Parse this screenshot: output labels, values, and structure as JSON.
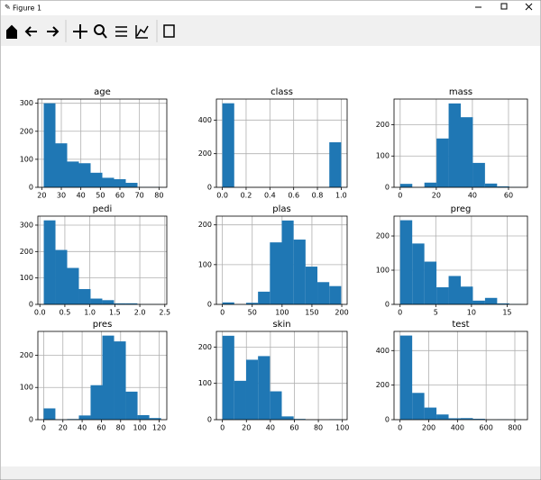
{
  "window": {
    "title": "Figure 1"
  },
  "chart_data": [
    {
      "type": "histogram",
      "title": "age",
      "bins": [
        21,
        27,
        33,
        39,
        45,
        51,
        57,
        63,
        69,
        75,
        81
      ],
      "values": [
        300,
        157,
        92,
        86,
        52,
        34,
        29,
        16,
        1,
        1
      ],
      "color": "#1f77b4",
      "xlim": [
        18,
        84
      ],
      "xticks": [
        20,
        30,
        40,
        50,
        60,
        70,
        80
      ],
      "ylim": [
        0,
        315
      ],
      "yticks": [
        0,
        100,
        200,
        300
      ],
      "grid": true
    },
    {
      "type": "histogram",
      "title": "class",
      "bins": [
        0,
        0.1,
        0.2,
        0.3,
        0.4,
        0.5,
        0.6,
        0.7,
        0.8,
        0.9,
        1
      ],
      "values": [
        500,
        0,
        0,
        0,
        0,
        0,
        0,
        0,
        0,
        268
      ],
      "color": "#1f77b4",
      "xlim": [
        -0.05,
        1.05
      ],
      "xticks": [
        {
          "value": 0,
          "label": "0.0"
        },
        0.2,
        0.4,
        0.6,
        0.8,
        {
          "value": 1,
          "label": "1.0"
        }
      ],
      "ylim": [
        0,
        525
      ],
      "yticks": [
        0,
        200,
        400
      ],
      "grid": true
    },
    {
      "type": "histogram",
      "title": "mass",
      "bins": [
        0,
        6.71,
        13.42,
        20.13,
        26.84,
        33.55,
        40.26,
        46.97,
        53.68,
        60.39,
        67.1
      ],
      "values": [
        11,
        0,
        15,
        156,
        268,
        224,
        78,
        12,
        3,
        1
      ],
      "color": "#1f77b4",
      "xlim": [
        -3.4,
        70.5
      ],
      "xticks": [
        0,
        20,
        40,
        60
      ],
      "ylim": [
        0,
        282
      ],
      "yticks": [
        0,
        100,
        200
      ],
      "grid": true
    },
    {
      "type": "histogram",
      "title": "pedi",
      "bins": [
        0.078,
        0.3122,
        0.5464,
        0.7806,
        1.0148,
        1.249,
        1.4832,
        1.7174,
        1.9516,
        2.1858,
        2.42
      ],
      "values": [
        318,
        206,
        138,
        58,
        22,
        16,
        4,
        4,
        1,
        1
      ],
      "color": "#1f77b4",
      "xlim": [
        -0.04,
        2.54
      ],
      "xticks": [
        {
          "value": 0,
          "label": "0.0"
        },
        0.5,
        {
          "value": 1,
          "label": "1.0"
        },
        1.5,
        {
          "value": 2,
          "label": "2.0"
        },
        2.5
      ],
      "ylim": [
        0,
        334
      ],
      "yticks": [
        0,
        100,
        200,
        300
      ],
      "grid": true
    },
    {
      "type": "histogram",
      "title": "plas",
      "bins": [
        0,
        19.9,
        39.8,
        59.7,
        79.6,
        99.5,
        119.4,
        139.3,
        159.2,
        179.1,
        199
      ],
      "values": [
        5,
        0,
        4,
        32,
        156,
        211,
        163,
        95,
        56,
        46
      ],
      "color": "#1f77b4",
      "xlim": [
        -10,
        209
      ],
      "xticks": [
        0,
        50,
        100,
        150,
        200
      ],
      "ylim": [
        0,
        222
      ],
      "yticks": [
        0,
        100,
        200
      ],
      "grid": true
    },
    {
      "type": "histogram",
      "title": "preg",
      "bins": [
        0,
        1.7,
        3.4,
        5.1,
        6.8,
        8.5,
        10.2,
        11.9,
        13.6,
        15.3,
        17
      ],
      "values": [
        246,
        178,
        125,
        50,
        83,
        52,
        11,
        19,
        3,
        1
      ],
      "color": "#1f77b4",
      "xlim": [
        -0.85,
        17.85
      ],
      "xticks": [
        0,
        5,
        10,
        15
      ],
      "ylim": [
        0,
        258
      ],
      "yticks": [
        0,
        100,
        200
      ],
      "grid": true
    },
    {
      "type": "histogram",
      "title": "pres",
      "bins": [
        0,
        12.2,
        24.4,
        36.6,
        48.8,
        61,
        73.2,
        85.4,
        97.6,
        109.8,
        122
      ],
      "values": [
        35,
        1,
        2,
        13,
        107,
        261,
        243,
        87,
        14,
        5
      ],
      "color": "#1f77b4",
      "xlim": [
        -6,
        128
      ],
      "xticks": [
        0,
        20,
        40,
        60,
        80,
        100,
        120
      ],
      "ylim": [
        0,
        274
      ],
      "yticks": [
        0,
        100,
        200
      ],
      "grid": true
    },
    {
      "type": "histogram",
      "title": "skin",
      "bins": [
        0,
        9.9,
        19.8,
        29.7,
        39.6,
        49.5,
        59.4,
        69.3,
        79.2,
        89.1,
        99
      ],
      "values": [
        231,
        107,
        165,
        175,
        78,
        9,
        2,
        0,
        0,
        1
      ],
      "color": "#1f77b4",
      "xlim": [
        -5,
        104
      ],
      "xticks": [
        0,
        20,
        40,
        60,
        80,
        100
      ],
      "ylim": [
        0,
        243
      ],
      "yticks": [
        0,
        100,
        200
      ],
      "grid": true
    },
    {
      "type": "histogram",
      "title": "test",
      "bins": [
        0,
        84.6,
        169.2,
        253.8,
        338.4,
        423,
        507.6,
        592.2,
        676.8,
        761.4,
        846
      ],
      "values": [
        487,
        155,
        70,
        30,
        8,
        9,
        5,
        1,
        2,
        1
      ],
      "color": "#1f77b4",
      "xlim": [
        -42,
        888
      ],
      "xticks": [
        0,
        200,
        400,
        600,
        800
      ],
      "ylim": [
        0,
        511
      ],
      "yticks": [
        0,
        200,
        400
      ],
      "grid": true
    }
  ]
}
